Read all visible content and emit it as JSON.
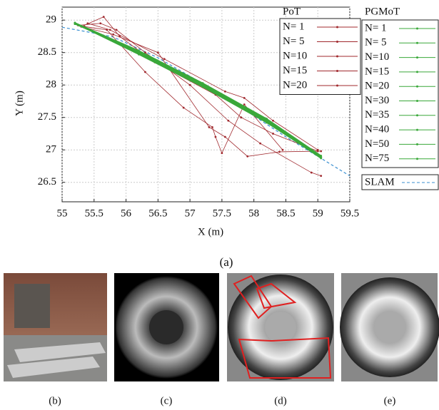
{
  "chart_data": {
    "type": "line",
    "x_label": "X (m)",
    "y_label": "Y (m)",
    "caption": "(a)",
    "xlim": [
      55,
      59.5
    ],
    "xticks": [
      55,
      55.5,
      56,
      56.5,
      57,
      57.5,
      58,
      58.5,
      59,
      59.5
    ],
    "ylim": [
      26.2,
      29.2
    ],
    "yticks": [
      26.5,
      27,
      27.5,
      28,
      28.5,
      29
    ],
    "grid": true,
    "groups": [
      {
        "title": "PoT",
        "color": "#a0282d",
        "series": [
          {
            "name": "N=  1",
            "x": [
              55.25,
              55.6,
              55.85,
              56.3,
              57.0,
              57.6,
              58.1,
              58.9,
              59.05
            ],
            "y": [
              28.92,
              28.95,
              28.85,
              28.5,
              28.0,
              27.45,
              27.1,
              26.65,
              26.6
            ]
          },
          {
            "name": "N=  5",
            "x": [
              55.3,
              55.65,
              55.9,
              56.45,
              57.4,
              57.8,
              58.3,
              59.0
            ],
            "y": [
              28.9,
              29.05,
              28.75,
              28.35,
              27.85,
              27.5,
              27.25,
              26.98
            ]
          },
          {
            "name": "N=10",
            "x": [
              55.35,
              55.7,
              56.3,
              56.9,
              57.35,
              57.4,
              57.5,
              57.85,
              58.45
            ],
            "y": [
              28.9,
              28.85,
              28.2,
              27.65,
              27.35,
              27.2,
              26.95,
              27.7,
              27.0
            ]
          },
          {
            "name": "N=15",
            "x": [
              55.4,
              55.75,
              56.6,
              57.55,
              57.85,
              58.3,
              59.0
            ],
            "y": [
              28.95,
              28.85,
              28.4,
              27.9,
              27.8,
              27.45,
              27.0
            ]
          },
          {
            "name": "N=20",
            "x": [
              55.3,
              55.8,
              56.5,
              57.3,
              57.55,
              57.9,
              58.4,
              59.05
            ],
            "y": [
              28.9,
              28.78,
              28.5,
              27.35,
              27.2,
              26.9,
              26.97,
              26.98
            ]
          }
        ]
      },
      {
        "title": "PGMoT",
        "color": "#3aa83a",
        "series": [
          {
            "name": "N=  1",
            "x": [
              55.2,
              56.2,
              57.2,
              58.2,
              59.05
            ],
            "y": [
              28.95,
              28.5,
              28.0,
              27.45,
              26.88
            ]
          },
          {
            "name": "N=  5",
            "x": [
              55.2,
              56.2,
              57.2,
              58.2,
              59.05
            ],
            "y": [
              28.94,
              28.52,
              28.02,
              27.47,
              26.9
            ]
          },
          {
            "name": "N=10",
            "x": [
              55.2,
              56.2,
              57.2,
              58.2,
              59.05
            ],
            "y": [
              28.95,
              28.48,
              27.98,
              27.43,
              26.87
            ]
          },
          {
            "name": "N=15",
            "x": [
              55.2,
              56.2,
              57.2,
              58.2,
              59.05
            ],
            "y": [
              28.96,
              28.53,
              28.03,
              27.48,
              26.91
            ]
          },
          {
            "name": "N=20",
            "x": [
              55.2,
              56.2,
              57.2,
              58.2,
              59.05
            ],
            "y": [
              28.95,
              28.47,
              27.97,
              27.42,
              26.88
            ]
          },
          {
            "name": "N=30",
            "x": [
              55.2,
              56.2,
              57.2,
              58.2,
              59.05
            ],
            "y": [
              28.94,
              28.51,
              28.01,
              27.46,
              26.89
            ]
          },
          {
            "name": "N=35",
            "x": [
              55.2,
              56.2,
              57.2,
              58.2,
              59.05
            ],
            "y": [
              28.95,
              28.49,
              27.99,
              27.44,
              26.88
            ]
          },
          {
            "name": "N=40",
            "x": [
              55.2,
              56.2,
              57.2,
              58.2,
              59.05
            ],
            "y": [
              28.95,
              28.5,
              28.01,
              27.45,
              26.9
            ]
          },
          {
            "name": "N=50",
            "x": [
              55.2,
              56.2,
              57.2,
              58.2,
              59.05
            ],
            "y": [
              28.96,
              28.5,
              27.99,
              27.46,
              26.89
            ]
          },
          {
            "name": "N=75",
            "x": [
              55.2,
              56.2,
              57.2,
              58.2,
              59.05
            ],
            "y": [
              28.95,
              28.51,
              28.0,
              27.44,
              26.88
            ]
          }
        ]
      }
    ],
    "slam": {
      "name": "SLAM",
      "color": "#3a8fd0",
      "x": [
        55,
        55.5,
        55.8,
        56.5,
        57.5,
        58.5,
        59.5
      ],
      "y": [
        28.89,
        28.8,
        28.74,
        28.42,
        27.85,
        27.2,
        26.6
      ]
    }
  },
  "images": [
    {
      "caption": "(b)"
    },
    {
      "caption": "(c)"
    },
    {
      "caption": "(d)"
    },
    {
      "caption": "(e)"
    }
  ]
}
